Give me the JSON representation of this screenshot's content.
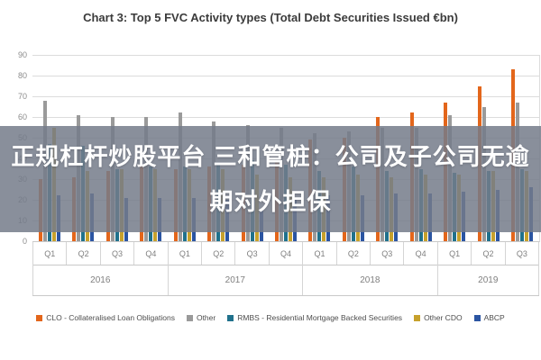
{
  "title": "Chart 3: Top 5 FVC Activity types (Total Debt Securities Issued €bn)",
  "watermark": {
    "line1": "正规杠杆炒股平台 三和管桩：公司及子公司无逾",
    "line2": "期对外担保"
  },
  "chart_data": {
    "type": "bar",
    "title": "Chart 3: Top 5 FVC Activity types (Total Debt Securities Issued €bn)",
    "xlabel": "",
    "ylabel": "",
    "ylim": [
      0,
      90
    ],
    "yticks": [
      0,
      10,
      20,
      30,
      40,
      50,
      60,
      70,
      80,
      90
    ],
    "grid": true,
    "legend_position": "bottom",
    "quarters": [
      "Q1",
      "Q2",
      "Q3",
      "Q4",
      "Q1",
      "Q2",
      "Q3",
      "Q4",
      "Q1",
      "Q2",
      "Q3",
      "Q4",
      "Q1",
      "Q2",
      "Q3"
    ],
    "years": [
      {
        "label": "2016",
        "span": 4
      },
      {
        "label": "2017",
        "span": 4
      },
      {
        "label": "2018",
        "span": 4
      },
      {
        "label": "2019",
        "span": 3
      }
    ],
    "series": [
      {
        "name": "CLO - Collateralised Loan Obligations",
        "color": "#E3661B",
        "values": [
          30,
          31,
          34,
          36,
          35,
          36,
          37,
          39,
          49,
          50,
          60,
          62,
          67,
          75,
          83
        ]
      },
      {
        "name": "Other",
        "color": "#9A9A9A",
        "values": [
          68,
          61,
          60,
          60,
          62,
          58,
          56,
          55,
          52,
          53,
          55,
          55,
          61,
          65,
          67
        ]
      },
      {
        "name": "RMBS - Residential Mortgage Backed Securities",
        "color": "#20718C",
        "values": [
          47,
          46,
          35,
          36,
          36,
          37,
          39,
          37,
          34,
          36,
          34,
          35,
          33,
          34,
          35
        ]
      },
      {
        "name": "Other CDO",
        "color": "#C7A12C",
        "values": [
          55,
          34,
          35,
          35,
          35,
          35,
          32,
          31,
          31,
          32,
          31,
          32,
          32,
          34,
          34
        ]
      },
      {
        "name": "ABCP",
        "color": "#2B55A2",
        "values": [
          22,
          23,
          21,
          21,
          21,
          20,
          15,
          20,
          22,
          22,
          23,
          23,
          24,
          25,
          26
        ]
      }
    ]
  }
}
